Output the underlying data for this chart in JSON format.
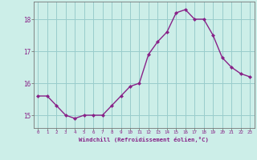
{
  "hours": [
    0,
    1,
    2,
    3,
    4,
    5,
    6,
    7,
    8,
    9,
    10,
    11,
    12,
    13,
    14,
    15,
    16,
    17,
    18,
    19,
    20,
    21,
    22,
    23
  ],
  "values": [
    15.6,
    15.6,
    15.3,
    15.0,
    14.9,
    15.0,
    15.0,
    15.0,
    15.3,
    15.6,
    15.9,
    16.0,
    16.9,
    17.3,
    17.6,
    18.2,
    18.3,
    18.0,
    18.0,
    17.5,
    16.8,
    16.5,
    16.3,
    16.2
  ],
  "line_color": "#882288",
  "marker_color": "#882288",
  "bg_color": "#cceee8",
  "grid_color": "#99cccc",
  "xlabel": "Windchill (Refroidissement éolien,°C)",
  "xlabel_color": "#882288",
  "tick_color": "#882288",
  "spine_color": "#777777",
  "ylim": [
    14.6,
    18.55
  ],
  "yticks": [
    15,
    16,
    17,
    18
  ],
  "xlim": [
    -0.5,
    23.5
  ]
}
